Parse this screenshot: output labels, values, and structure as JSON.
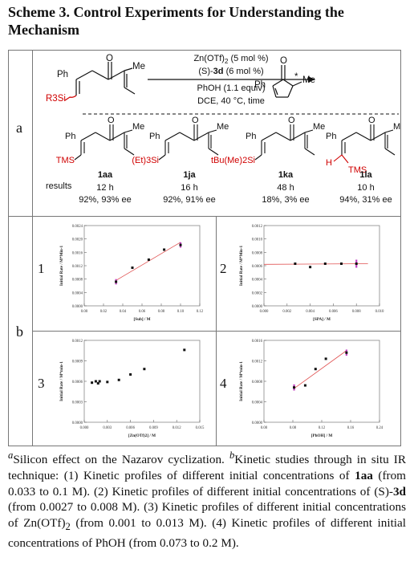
{
  "title": "Scheme 3. Control Experiments for Understanding the Mechanism",
  "part_labels": {
    "a": "a",
    "b": "b"
  },
  "reaction": {
    "reagent1": "Zn(OTf)",
    "reagent1_sub": "2",
    "reagent1_amount": " (5 mol %)",
    "catalyst_prefix": "(S)-",
    "catalyst_bold": "3d",
    "catalyst_amount": " (6 mol %)",
    "additive": "PhOH (1.1 equiv)",
    "conditions": "DCE, 40 °C, time",
    "substrate": {
      "ph": "Ph",
      "me": "Me",
      "o": "O",
      "silyl": "R3Si"
    },
    "product": {
      "ph": "Ph",
      "me": "Me",
      "o": "O",
      "star": "*"
    }
  },
  "substrates": [
    {
      "id": "1aa",
      "group": "TMS",
      "time": "12 h",
      "yield_ee": "92%, 93% ee"
    },
    {
      "id": "1ja",
      "group": "(Et)3Si",
      "time": "16 h",
      "yield_ee": "92%, 91% ee"
    },
    {
      "id": "1ka",
      "group": "tBu(Me)2Si",
      "time": "48 h",
      "yield_ee": "18%, 3% ee"
    },
    {
      "id": "1la",
      "group": "TMS",
      "h_label": "H",
      "time": "10 h",
      "yield_ee": "94%, 31% ee"
    }
  ],
  "results_label": "results",
  "structure_text": {
    "ph": "Ph",
    "me": "Me",
    "o": "O"
  },
  "plot_numbers": [
    "1",
    "2",
    "3",
    "4"
  ],
  "chart_data": [
    {
      "type": "scatter",
      "xlabel": "[Sub] / M",
      "ylabel": "Initial Rate / M*Min-1",
      "xlim": [
        0,
        0.12
      ],
      "ylim": [
        0,
        0.0024
      ],
      "xticks": [
        "0.00",
        "0.02",
        "0.04",
        "0.06",
        "0.08",
        "0.10",
        "0.12"
      ],
      "yticks": [
        "0.0000",
        "0.0004",
        "0.0008",
        "0.0012",
        "0.0016",
        "0.0020",
        "0.0024"
      ],
      "x": [
        0.033,
        0.05,
        0.067,
        0.083,
        0.1
      ],
      "y": [
        0.00072,
        0.00114,
        0.00138,
        0.00168,
        0.00182
      ],
      "err": [
        8e-05,
        0,
        0,
        0,
        8e-05
      ],
      "fit": [
        [
          0.033,
          0.00076
        ],
        [
          0.1,
          0.0019
        ]
      ],
      "err_idx": [
        0,
        4
      ]
    },
    {
      "type": "scatter",
      "xlabel": "[SPA] / M",
      "ylabel": "Initial Rate / M*Min-1",
      "xlim": [
        0,
        0.01
      ],
      "ylim": [
        0,
        0.0012
      ],
      "xticks": [
        "0.000",
        "0.002",
        "0.004",
        "0.006",
        "0.008",
        "0.010"
      ],
      "yticks": [
        "0.0000",
        "0.0002",
        "0.0004",
        "0.0006",
        "0.0008",
        "0.0010",
        "0.0012"
      ],
      "x": [
        0.0027,
        0.004,
        0.0053,
        0.0067,
        0.008
      ],
      "y": [
        0.00063,
        0.00058,
        0.00063,
        0.00063,
        0.00063
      ],
      "err": [
        0,
        0,
        0,
        0,
        6e-05
      ],
      "fit": [
        [
          0,
          0.00062
        ],
        [
          0.009,
          0.00063
        ]
      ],
      "err_idx": [
        4
      ]
    },
    {
      "type": "scatter",
      "xlabel": "[Zn(OTf)2] / M",
      "ylabel": "Initial Rate / M*min-1",
      "xlim": [
        0,
        0.015
      ],
      "ylim": [
        0,
        0.0012
      ],
      "xticks": [
        "0.000",
        "0.003",
        "0.006",
        "0.009",
        "0.012",
        "0.015"
      ],
      "yticks": [
        "0.0000",
        "0.0003",
        "0.0006",
        "0.0009",
        "0.0012"
      ],
      "x": [
        0.001,
        0.0015,
        0.0018,
        0.002,
        0.003,
        0.0045,
        0.006,
        0.0078,
        0.013
      ],
      "y": [
        0.00058,
        0.0006,
        0.00057,
        0.0006,
        0.00059,
        0.00062,
        0.0007,
        0.00078,
        0.00106
      ],
      "err": [
        0,
        0,
        0,
        0,
        0,
        0,
        0,
        0,
        0
      ],
      "fit": [],
      "err_idx": []
    },
    {
      "type": "scatter",
      "xlabel": "[PhOH] / M",
      "ylabel": "Initial Rate / M*min-1",
      "xlim": [
        0,
        0.28
      ],
      "ylim": [
        0,
        0.0016
      ],
      "xticks": [
        "0.00",
        "0.08",
        "0.12",
        "0.16",
        "0.24"
      ],
      "xtickpos": [
        0,
        0.07,
        0.14,
        0.21,
        0.28
      ],
      "yticks": [
        "0.0000",
        "0.0004",
        "0.0008",
        "0.0012",
        "0.0016"
      ],
      "x": [
        0.073,
        0.1,
        0.125,
        0.15,
        0.2
      ],
      "y": [
        0.00068,
        0.00072,
        0.00104,
        0.00124,
        0.00136
      ],
      "err": [
        6e-05,
        0,
        0,
        0,
        6e-05
      ],
      "fit": [
        [
          0.073,
          0.00066
        ],
        [
          0.2,
          0.0014
        ]
      ],
      "err_idx": [
        0,
        4
      ]
    }
  ],
  "caption": {
    "p1_sup": "a",
    "p1_text": "Silicon effect on the Nazarov cyclization. ",
    "p2_sup": "b",
    "p2_text": "Kinetic studies through in situ IR technique: (1) Kinetic profiles of different initial concentrations of ",
    "p2_bold": "1aa",
    "p2_text2": " (from 0.033 to 0.1 M). (2) Kinetic profiles of different initial concentrations of (S)-",
    "p2_bold2": "3d",
    "p2_text3": " (from 0.0027 to 0.008 M). (3) Kinetic profiles of different initial concentrations of Zn(OTf)",
    "p2_sub": "2",
    "p2_text4": " (from 0.001 to 0.013 M). (4) Kinetic profiles of different initial concentrations of PhOH (from 0.073 to 0.2 M)."
  }
}
